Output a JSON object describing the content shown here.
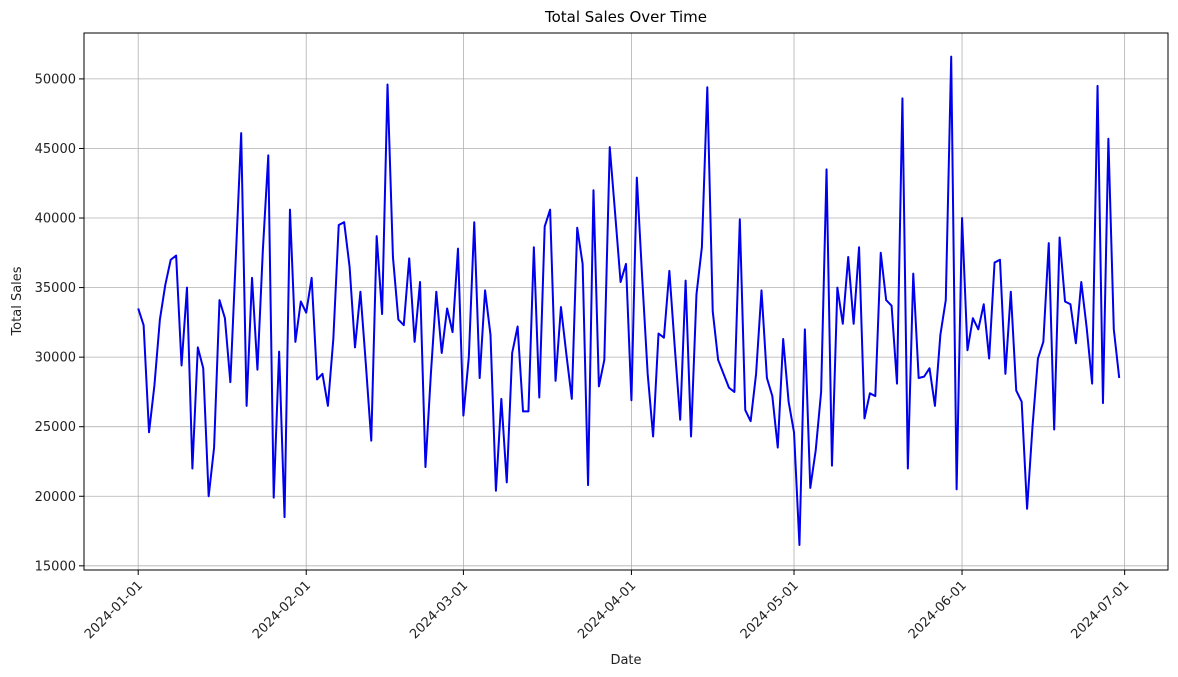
{
  "chart_data": {
    "type": "line",
    "title": "Total Sales Over Time",
    "xlabel": "Date",
    "ylabel": "Total Sales",
    "grid": true,
    "line_color": "#0000ee",
    "x_start": "2024-01-01",
    "x_end": "2024-06-30",
    "xlim": [
      "2023-12-22",
      "2024-07-09"
    ],
    "ylim": [
      14700,
      53300
    ],
    "x_ticks": [
      "2024-01-01",
      "2024-02-01",
      "2024-03-01",
      "2024-04-01",
      "2024-05-01",
      "2024-06-01",
      "2024-07-01"
    ],
    "y_ticks": [
      15000,
      20000,
      25000,
      30000,
      35000,
      40000,
      45000,
      50000
    ],
    "values": [
      33500,
      32300,
      24600,
      28000,
      32700,
      35200,
      37000,
      37300,
      29400,
      35000,
      22000,
      30700,
      29200,
      20000,
      23500,
      34100,
      32800,
      28200,
      37100,
      46100,
      26500,
      35700,
      29100,
      37700,
      44500,
      19900,
      30400,
      18500,
      40600,
      31100,
      34000,
      33200,
      35700,
      28400,
      28800,
      26500,
      31300,
      39500,
      39700,
      36500,
      30700,
      34700,
      29500,
      24000,
      38700,
      33100,
      49600,
      37200,
      32700,
      32300,
      37100,
      31100,
      35400,
      22100,
      28800,
      34700,
      30300,
      33500,
      31800,
      37800,
      25800,
      30000,
      39700,
      28500,
      34800,
      31600,
      20400,
      27000,
      21000,
      30300,
      32200,
      26100,
      26100,
      37900,
      27100,
      39400,
      40600,
      28300,
      33600,
      30200,
      27000,
      39300,
      36700,
      20800,
      42000,
      27900,
      29800,
      45100,
      40300,
      35400,
      36700,
      26900,
      42900,
      35600,
      28800,
      24300,
      31700,
      31400,
      36200,
      30700,
      25500,
      35500,
      24300,
      34500,
      37900,
      49400,
      33300,
      29800,
      28800,
      27800,
      27500,
      39900,
      26200,
      25400,
      28800,
      34800,
      28500,
      27200,
      23500,
      31300,
      26800,
      24600,
      16500,
      32000,
      20600,
      23300,
      27500,
      43500,
      22200,
      35000,
      32400,
      37200,
      32400,
      37900,
      25600,
      27400,
      27200,
      37500,
      34100,
      33700,
      28100,
      48600,
      22000,
      36000,
      28500,
      28600,
      29200,
      26500,
      31600,
      34100,
      51600,
      20500,
      40000,
      30500,
      32800,
      32000,
      33800,
      29900,
      36800,
      37000,
      28800,
      34700,
      27600,
      26800,
      19100,
      25000,
      29900,
      31100,
      38200,
      24800,
      38600,
      34000,
      33800,
      31000,
      35400,
      32100,
      28100,
      49500,
      26700,
      45700,
      32000,
      28500
    ]
  }
}
